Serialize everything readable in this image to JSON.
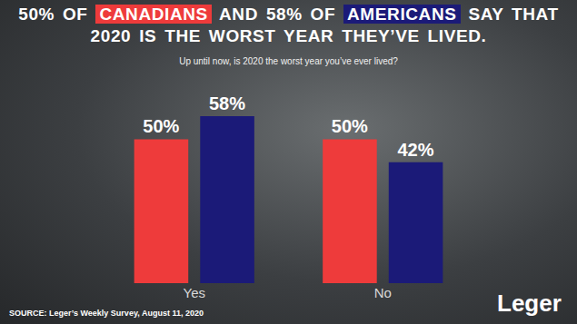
{
  "chart_data": {
    "type": "bar",
    "title": "50% OF CANADIANS AND 58% OF AMERICANS SAY THAT 2020 IS THE WORST YEAR THEY’VE LIVED.",
    "subtitle": "Up until now, is 2020 the worst year you’ve ever lived?",
    "source": "SOURCE: Leger’s Weekly Survey, August 11, 2020",
    "logo": "Leger",
    "categories": [
      "Yes",
      "No"
    ],
    "series": [
      {
        "name": "CANADIANS",
        "color": "#ee3b3b",
        "values": [
          50,
          50
        ],
        "value_labels": [
          "50%",
          "50%"
        ]
      },
      {
        "name": "AMERICANS",
        "color": "#1b1a78",
        "values": [
          58,
          42
        ],
        "value_labels": [
          "58%",
          "42%"
        ]
      }
    ],
    "ylim": [
      0,
      70
    ],
    "data_labels": true,
    "tick_labels": "x",
    "grid": false
  }
}
